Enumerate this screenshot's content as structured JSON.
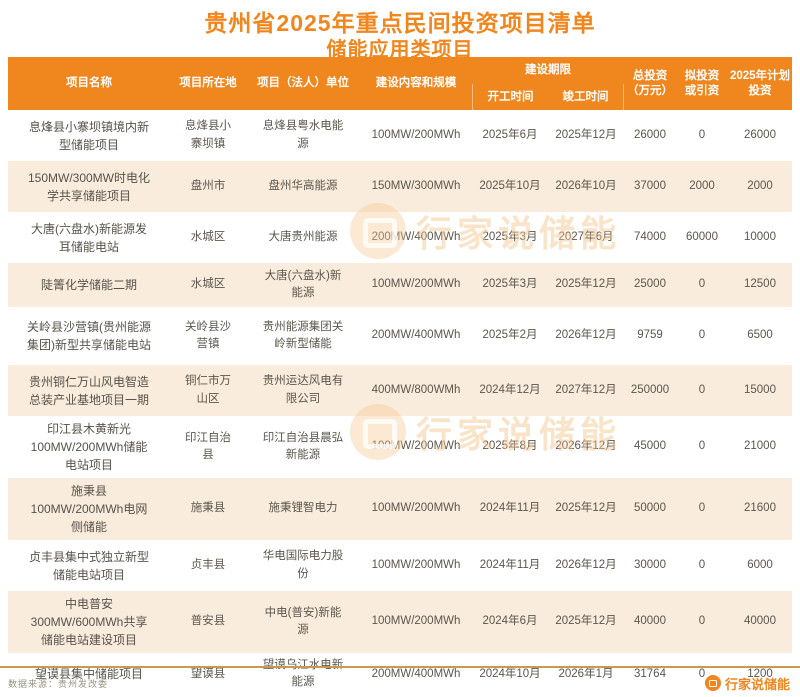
{
  "title": {
    "line1": "贵州省2025年重点民间投资项目清单",
    "line2": "储能应用类项目"
  },
  "colors": {
    "accent": "#F0861E",
    "stripe": "#FAECDC",
    "divider": "#C89A4F",
    "body_text": "#5B564D"
  },
  "table": {
    "headers": {
      "name": "项目名称",
      "location": "项目所在地",
      "unit": "项目（法人）单位",
      "scale": "建设内容和规模",
      "period": "建设期限",
      "start": "开工时间",
      "end": "竣工时间",
      "total": "总投资\n（万元）",
      "proposed": "拟投资\n或引资",
      "plan": "2025年计划\n投资"
    },
    "rows": [
      {
        "name": "息烽县小寨坝镇境内新型储能项目",
        "location": "息烽县小寨坝镇",
        "unit": "息烽县粤水电能源",
        "scale": "100MW/200MWh",
        "start": "2025年6月",
        "end": "2025年12月",
        "total": "26000",
        "proposed": "0",
        "plan": "26000"
      },
      {
        "name": "150MW/300MW时电化学共享储能项目",
        "location": "盘州市",
        "unit": "盘州华高能源",
        "scale": "150MW/300MWh",
        "start": "2025年10月",
        "end": "2026年10月",
        "total": "37000",
        "proposed": "2000",
        "plan": "2000"
      },
      {
        "name": "大唐(六盘水)新能源发耳储能电站",
        "location": "水城区",
        "unit": "大唐贵州能源",
        "scale": "200MW/400MWh",
        "start": "2025年3月",
        "end": "2027年6月",
        "total": "74000",
        "proposed": "60000",
        "plan": "10000"
      },
      {
        "name": "陡箐化学储能二期",
        "location": "水城区",
        "unit": "大唐(六盘水)新能源",
        "scale": "100MW/200MWh",
        "start": "2025年3月",
        "end": "2025年12月",
        "total": "25000",
        "proposed": "0",
        "plan": "12500"
      },
      {
        "name": "关岭县沙营镇(贵州能源集团)新型共享储能电站",
        "location": "关岭县沙营镇",
        "unit": "贵州能源集团关岭新型储能",
        "scale": "200MW/400MWh",
        "start": "2025年2月",
        "end": "2026年12月",
        "total": "9759",
        "proposed": "0",
        "plan": "6500"
      },
      {
        "name": "贵州铜仁万山风电智造总装产业基地项目一期",
        "location": "铜仁市万山区",
        "unit": "贵州运达风电有限公司",
        "scale": "400MW/800WMh",
        "start": "2024年12月",
        "end": "2027年12月",
        "total": "250000",
        "proposed": "0",
        "plan": "15000"
      },
      {
        "name": "印江县木黄新光100MW/200MWh储能电站项目",
        "location": "印江自治县",
        "unit": "印江自治县晨弘新能源",
        "scale": "100MW/200MWh",
        "start": "2025年8月",
        "end": "2026年12月",
        "total": "45000",
        "proposed": "0",
        "plan": "21000"
      },
      {
        "name": "施秉县100MW/200MWh电网侧储能",
        "location": "施秉县",
        "unit": "施秉锂智电力",
        "scale": "100MW/200MWh",
        "start": "2024年11月",
        "end": "2025年12月",
        "total": "50000",
        "proposed": "0",
        "plan": "21600"
      },
      {
        "name": "贞丰县集中式独立新型储能电站项目",
        "location": "贞丰县",
        "unit": "华电国际电力股份",
        "scale": "100MW/200MWh",
        "start": "2024年11月",
        "end": "2026年12月",
        "total": "30000",
        "proposed": "0",
        "plan": "6000"
      },
      {
        "name": "中电普安300MW/600MWh共享储能电站建设项目",
        "location": "普安县",
        "unit": "中电(普安)新能源",
        "scale": "100MW/200MWh",
        "start": "2024年6月",
        "end": "2025年12月",
        "total": "40000",
        "proposed": "0",
        "plan": "40000"
      },
      {
        "name": "望谟县集中储能项目",
        "location": "望谟县",
        "unit": "望谟乌江水电新能源",
        "scale": "200MW/400MWh",
        "start": "2024年10月",
        "end": "2026年1月",
        "total": "31764",
        "proposed": "0",
        "plan": "1200"
      }
    ]
  },
  "watermark": {
    "text": "行家说储能"
  },
  "footer": {
    "source": "数据来源：贵州发改委",
    "brand": "行家说储能"
  }
}
